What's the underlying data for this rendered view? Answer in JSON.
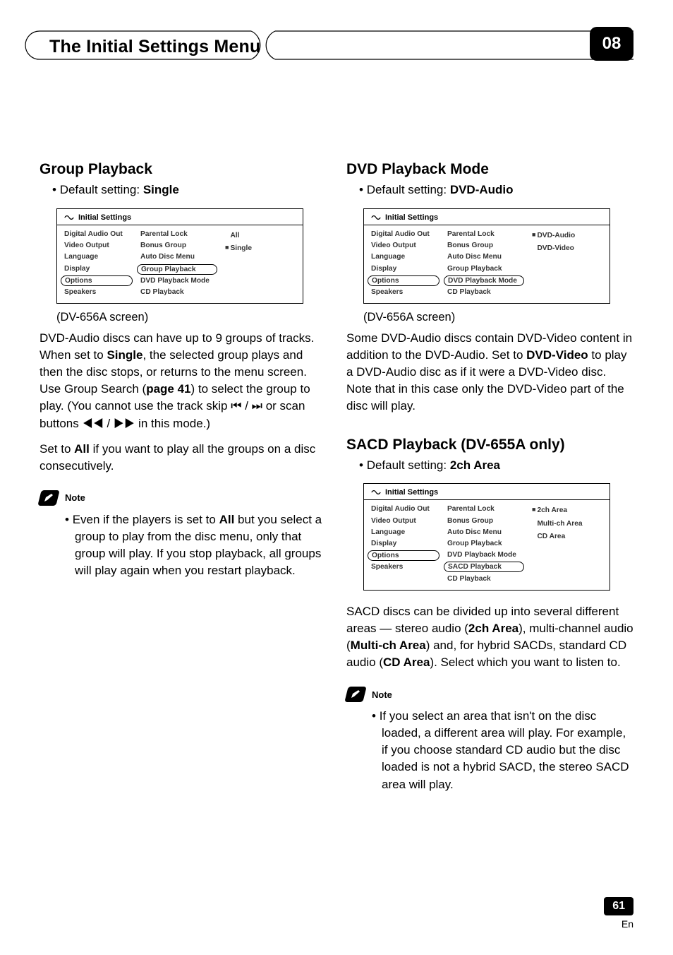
{
  "header": {
    "title": "The Initial Settings Menu",
    "chapter_badge": "08"
  },
  "left": {
    "section_title": "Group Playback",
    "default_label": "Default setting: ",
    "default_value": "Single",
    "panel": {
      "header": "Initial Settings",
      "col1": [
        "Digital Audio Out",
        "Video Output",
        "Language",
        "Display",
        "Options",
        "Speakers"
      ],
      "col1_pill_index": 4,
      "col2": [
        "Parental  Lock",
        "Bonus Group",
        "Auto Disc Menu",
        "Group Playback",
        "DVD Playback Mode",
        "CD Playback"
      ],
      "col2_pill_index": 3,
      "col3": [
        {
          "label": "All",
          "marker": ""
        },
        {
          "label": "Single",
          "marker": "■"
        }
      ]
    },
    "caption": "(DV-656A screen)",
    "para1_a": "DVD-Audio discs can have up to 9 groups of tracks. When set to ",
    "para1_bold1": "Single",
    "para1_b": ", the selected group plays and then the disc stops, or returns to the menu screen. Use Group Search (",
    "para1_bold2": "page 41",
    "para1_c": ") to select the group to play. (You cannot use the track skip ⏮ / ⏭ or scan buttons ◀◀ / ▶▶ in this mode.)",
    "para2_a": "Set to ",
    "para2_bold": "All",
    "para2_b": " if you want to play all the groups on a disc consecutively.",
    "note_label": "Note",
    "note_a": "Even if the players is set to ",
    "note_bold": "All",
    "note_b": " but you select a group to play from the disc menu, only that group will play. If you stop playback, all groups will play again when you restart playback."
  },
  "right": {
    "section1_title": "DVD Playback Mode",
    "default1_label": "Default setting: ",
    "default1_value": "DVD-Audio",
    "panel1": {
      "header": "Initial Settings",
      "col1": [
        "Digital Audio Out",
        "Video Output",
        "Language",
        "Display",
        "Options",
        "Speakers"
      ],
      "col1_pill_index": 4,
      "col2": [
        "Parental  Lock",
        "Bonus Group",
        "Auto Disc Menu",
        "Group Playback",
        "DVD Playback Mode",
        "CD Playback"
      ],
      "col2_pill_index": 4,
      "col3": [
        {
          "label": "DVD-Audio",
          "marker": "■"
        },
        {
          "label": "DVD-Video",
          "marker": ""
        }
      ]
    },
    "caption1": "(DV-656A screen)",
    "para1_a": "Some DVD-Audio discs contain DVD-Video content in addition to the DVD-Audio. Set to ",
    "para1_bold": "DVD-Video",
    "para1_b": " to play a DVD-Audio disc as if it were a DVD-Video disc. Note that in this case only the DVD-Video part of the disc will play.",
    "section2_title": "SACD Playback (DV-655A only)",
    "default2_label": "Default setting: ",
    "default2_value": "2ch Area",
    "panel2": {
      "header": "Initial Settings",
      "col1": [
        "Digital Audio Out",
        "Video Output",
        "Language",
        "Display",
        "Options",
        "Speakers"
      ],
      "col1_pill_index": 4,
      "col2": [
        "Parental  Lock",
        "Bonus Group",
        "Auto Disc Menu",
        "Group Playback",
        "DVD Playback Mode",
        "SACD Playback",
        "CD Playback"
      ],
      "col2_pill_index": 5,
      "col3": [
        {
          "label": "2ch Area",
          "marker": "■"
        },
        {
          "label": "Multi-ch Area",
          "marker": ""
        },
        {
          "label": "CD Area",
          "marker": ""
        }
      ]
    },
    "para2_a": "SACD discs can be divided up into several different areas — stereo audio (",
    "para2_bold1": "2ch Area",
    "para2_b": "), multi-channel audio (",
    "para2_bold2": "Multi-ch Area",
    "para2_c": ") and, for hybrid SACDs, standard CD audio (",
    "para2_bold3": "CD Area",
    "para2_d": "). Select which you want to listen to.",
    "note_label": "Note",
    "note_text": "If you select an area that isn't on the disc loaded, a different area will play. For example, if you choose standard CD audio but the disc loaded is not a hybrid SACD, the stereo SACD area will play."
  },
  "footer": {
    "page_number": "61",
    "lang": "En"
  }
}
